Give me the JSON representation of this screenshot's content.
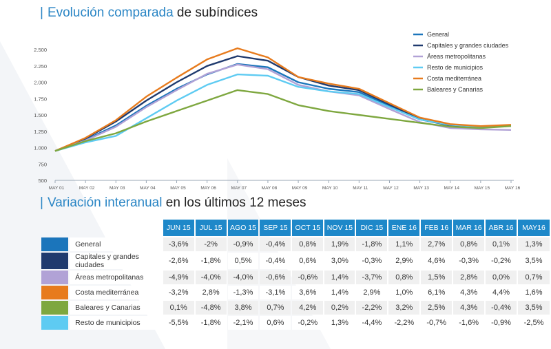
{
  "title1": {
    "accent": "Evolución comparada",
    "rest": " de subíndices"
  },
  "title2": {
    "accent": "Variación interanual",
    "rest": " en los últimos 12 meses"
  },
  "chart_data": {
    "type": "line",
    "ylim": [
      500,
      2500
    ],
    "yticks": [
      500,
      750,
      1000,
      1250,
      1500,
      1750,
      2000,
      2250,
      2500
    ],
    "ytick_labels": [
      "500",
      "750",
      "1.000",
      "1.250",
      "1.500",
      "1.750",
      "2.000",
      "2.250",
      "2.500"
    ],
    "xticks": [
      "MAY 01",
      "MAY 02",
      "MAY 03",
      "MAY 04",
      "MAY 05",
      "MAY 06",
      "MAY 07",
      "MAY 08",
      "MAY 09",
      "MAY 10",
      "MAY 11",
      "MAY 12",
      "MAY 13",
      "MAY 14",
      "MAY 15",
      "MAY 16"
    ],
    "x_start": 2001,
    "x_end": 2016,
    "legend_position": "top-right",
    "series": [
      {
        "name": "General",
        "color": "#1b75bb",
        "x": [
          2001,
          2002,
          2003,
          2004,
          2005,
          2006,
          2007,
          2008,
          2009,
          2010,
          2011,
          2012,
          2013,
          2014,
          2015,
          2016
        ],
        "y": [
          950,
          1120,
          1340,
          1640,
          1900,
          2120,
          2280,
          2230,
          2000,
          1900,
          1850,
          1640,
          1430,
          1340,
          1320,
          1330
        ]
      },
      {
        "name": "Capitales y grandes ciudades",
        "color": "#1f3a6e",
        "x": [
          2001,
          2002,
          2003,
          2004,
          2005,
          2006,
          2007,
          2008,
          2009,
          2010,
          2011,
          2012,
          2013,
          2014,
          2015,
          2016
        ],
        "y": [
          950,
          1140,
          1400,
          1720,
          2000,
          2250,
          2400,
          2330,
          2080,
          1950,
          1880,
          1660,
          1440,
          1340,
          1320,
          1330
        ]
      },
      {
        "name": "Áreas metropolitanas",
        "color": "#b1a2d6",
        "x": [
          2001,
          2002,
          2003,
          2004,
          2005,
          2006,
          2007,
          2008,
          2009,
          2010,
          2011,
          2012,
          2013,
          2014,
          2015,
          2016
        ],
        "y": [
          950,
          1110,
          1320,
          1620,
          1880,
          2130,
          2270,
          2200,
          1960,
          1860,
          1800,
          1590,
          1390,
          1300,
          1280,
          1270
        ]
      },
      {
        "name": "Resto de municipios",
        "color": "#5ecbf2",
        "x": [
          2001,
          2002,
          2003,
          2004,
          2005,
          2006,
          2007,
          2008,
          2009,
          2010,
          2011,
          2012,
          2013,
          2014,
          2015,
          2016
        ],
        "y": [
          950,
          1080,
          1180,
          1450,
          1720,
          1960,
          2120,
          2100,
          1930,
          1860,
          1820,
          1620,
          1430,
          1350,
          1320,
          1330
        ]
      },
      {
        "name": "Costa mediterránea",
        "color": "#e77b1d",
        "x": [
          2001,
          2002,
          2003,
          2004,
          2005,
          2006,
          2007,
          2008,
          2009,
          2010,
          2011,
          2012,
          2013,
          2014,
          2015,
          2016
        ],
        "y": [
          950,
          1150,
          1420,
          1780,
          2070,
          2350,
          2520,
          2380,
          2080,
          1980,
          1900,
          1680,
          1460,
          1360,
          1330,
          1350
        ]
      },
      {
        "name": "Baleares y Canarias",
        "color": "#7ea73f",
        "x": [
          2001,
          2002,
          2003,
          2004,
          2005,
          2006,
          2007,
          2008,
          2009,
          2010,
          2011,
          2012,
          2013,
          2014,
          2015,
          2016
        ],
        "y": [
          950,
          1100,
          1220,
          1400,
          1560,
          1720,
          1880,
          1820,
          1650,
          1560,
          1500,
          1440,
          1380,
          1320,
          1300,
          1330
        ]
      }
    ]
  },
  "table": {
    "headers": [
      "JUN 15",
      "JUL 15",
      "AGO 15",
      "SEP 15",
      "OCT 15",
      "NOV 15",
      "DIC 15",
      "ENE 16",
      "FEB 16",
      "MAR 16",
      "ABR 16",
      "MAY16"
    ],
    "rows": [
      {
        "label": "General",
        "color": "#1b75bb",
        "values": [
          "-3,6%",
          "-2%",
          "-0,9%",
          "-0,4%",
          "0,8%",
          "1,9%",
          "-1,8%",
          "1,1%",
          "2,7%",
          "0,8%",
          "0,1%",
          "1,3%"
        ]
      },
      {
        "label": "Capitales y grandes ciudades",
        "color": "#1f3a6e",
        "values": [
          "-2,6%",
          "-1,8%",
          "0,5%",
          "-0,4%",
          "0,6%",
          "3,0%",
          "-0,3%",
          "2,9%",
          "4,6%",
          "-0,3%",
          "-0,2%",
          "3,5%"
        ]
      },
      {
        "label": "Áreas metropolitanas",
        "color": "#b1a2d6",
        "values": [
          "-4,9%",
          "-4,0%",
          "-4,0%",
          "-0,6%",
          "-0,6%",
          "1,4%",
          "-3,7%",
          "0,8%",
          "1,5%",
          "2,8%",
          "0,0%",
          "0,7%"
        ]
      },
      {
        "label": "Costa mediterránea",
        "color": "#e77b1d",
        "values": [
          "-3,2%",
          "2,8%",
          "-1,3%",
          "-3,1%",
          "3,6%",
          "1,4%",
          "2,9%",
          "1,0%",
          "6,1%",
          "4,3%",
          "4,4%",
          "1,6%"
        ]
      },
      {
        "label": "Baleares y Canarias",
        "color": "#7ea73f",
        "values": [
          "0,1%",
          "-4,8%",
          "3,8%",
          "0,7%",
          "4,2%",
          "0,2%",
          "-2,2%",
          "3,2%",
          "2,5%",
          "4,3%",
          "-0,4%",
          "3,5%"
        ]
      },
      {
        "label": "Resto de municipios",
        "color": "#5ecbf2",
        "values": [
          "-5,5%",
          "-1,8%",
          "-2,1%",
          "0,6%",
          "-0,2%",
          "1,3%",
          "-4,4%",
          "-2,2%",
          "-0,7%",
          "-1,6%",
          "-0,9%",
          "-2,5%"
        ]
      }
    ]
  }
}
